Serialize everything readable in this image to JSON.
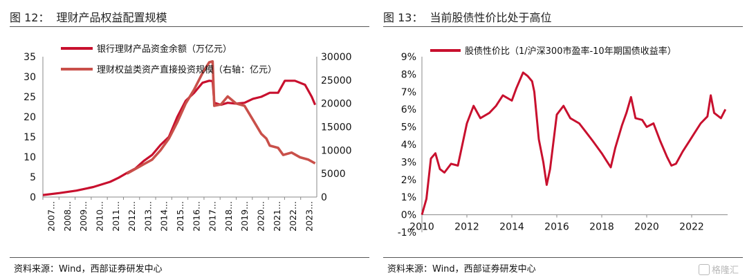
{
  "left": {
    "title_num": "图 12：",
    "title_text": "理财产品权益配置规模",
    "source": "资料来源：Wind，西部证券研发中心"
  },
  "right": {
    "title_num": "图 13：",
    "title_text": "当前股债性价比处于高位",
    "source": "资料来源：Wind，西部证券研发中心"
  },
  "watermark": "格隆汇",
  "chart_data": [
    {
      "type": "line",
      "title": "",
      "x": [
        "2007...",
        "2008...",
        "2009...",
        "2010...",
        "2011...",
        "2012...",
        "2013...",
        "2014...",
        "2015...",
        "2016...",
        "2017...",
        "2018...",
        "2019...",
        "2020...",
        "2021...",
        "2022...",
        "2023..."
      ],
      "ylim": [
        0,
        35
      ],
      "yticks": [
        0,
        5,
        10,
        15,
        20,
        25,
        30,
        35
      ],
      "y2lim": [
        0,
        30000
      ],
      "y2ticks": [
        0,
        5000,
        10000,
        15000,
        20000,
        25000,
        30000
      ],
      "colors": {
        "series1": "#c8102e",
        "series2": "#c9504a"
      },
      "series": [
        {
          "name": "银行理财产品资金余额（万亿元）",
          "axis": "left",
          "values": [
            [
              2007.0,
              0.5
            ],
            [
              2008.0,
              1.0
            ],
            [
              2009.0,
              1.6
            ],
            [
              2010.0,
              2.5
            ],
            [
              2011.0,
              3.8
            ],
            [
              2011.5,
              4.8
            ],
            [
              2012.0,
              6.0
            ],
            [
              2012.5,
              7.1
            ],
            [
              2013.0,
              9.0
            ],
            [
              2013.5,
              10.5
            ],
            [
              2014.0,
              13.0
            ],
            [
              2014.5,
              15.0
            ],
            [
              2015.0,
              20.0
            ],
            [
              2015.5,
              24.0
            ],
            [
              2016.0,
              26.0
            ],
            [
              2016.5,
              28.5
            ],
            [
              2016.9,
              29.0
            ],
            [
              2017.1,
              28.9
            ],
            [
              2017.2,
              23.5
            ],
            [
              2017.6,
              23.0
            ],
            [
              2018.0,
              23.5
            ],
            [
              2018.5,
              23.3
            ],
            [
              2019.0,
              23.5
            ],
            [
              2019.5,
              24.5
            ],
            [
              2020.0,
              25.0
            ],
            [
              2020.5,
              26.0
            ],
            [
              2021.0,
              26.0
            ],
            [
              2021.4,
              29.0
            ],
            [
              2022.0,
              29.0
            ],
            [
              2022.6,
              28.0
            ],
            [
              2023.0,
              25.0
            ],
            [
              2023.2,
              23.0
            ]
          ]
        },
        {
          "name": "理财权益类资产直接投资规模（右轴：亿元）",
          "axis": "right",
          "values": [
            [
              2012.0,
              5000
            ],
            [
              2012.5,
              6000
            ],
            [
              2013.0,
              7000
            ],
            [
              2013.5,
              8000
            ],
            [
              2014.0,
              10000
            ],
            [
              2014.5,
              12500
            ],
            [
              2015.0,
              16000
            ],
            [
              2015.5,
              20000
            ],
            [
              2016.0,
              23000
            ],
            [
              2016.5,
              26500
            ],
            [
              2016.9,
              28800
            ],
            [
              2017.1,
              29000
            ],
            [
              2017.2,
              19500
            ],
            [
              2017.6,
              19800
            ],
            [
              2018.0,
              21500
            ],
            [
              2018.5,
              20000
            ],
            [
              2019.0,
              19500
            ],
            [
              2019.5,
              16500
            ],
            [
              2020.0,
              13500
            ],
            [
              2020.3,
              12500
            ],
            [
              2020.5,
              11000
            ],
            [
              2021.0,
              10500
            ],
            [
              2021.3,
              9000
            ],
            [
              2021.8,
              9500
            ],
            [
              2022.3,
              8500
            ],
            [
              2022.8,
              8000
            ],
            [
              2023.2,
              7200
            ]
          ]
        }
      ]
    },
    {
      "type": "line",
      "title": "",
      "xticks": [
        2010,
        2012,
        2014,
        2016,
        2018,
        2020,
        2022
      ],
      "xlim": [
        2010,
        2023.6
      ],
      "ylim": [
        -0.01,
        0.09
      ],
      "yticks": [
        "-1%",
        "0%",
        "1%",
        "2%",
        "3%",
        "4%",
        "5%",
        "6%",
        "7%",
        "8%",
        "9%"
      ],
      "colors": {
        "series1": "#c8102e"
      },
      "series": [
        {
          "name": "股债性价比（1/沪深300市盈率-10年期国债收益率）",
          "values": [
            [
              2010.0,
              0.0
            ],
            [
              2010.2,
              0.009
            ],
            [
              2010.4,
              0.032
            ],
            [
              2010.6,
              0.035
            ],
            [
              2010.8,
              0.026
            ],
            [
              2011.0,
              0.024
            ],
            [
              2011.3,
              0.029
            ],
            [
              2011.6,
              0.028
            ],
            [
              2012.0,
              0.052
            ],
            [
              2012.3,
              0.062
            ],
            [
              2012.6,
              0.055
            ],
            [
              2013.0,
              0.058
            ],
            [
              2013.3,
              0.062
            ],
            [
              2013.6,
              0.068
            ],
            [
              2014.0,
              0.065
            ],
            [
              2014.2,
              0.072
            ],
            [
              2014.5,
              0.081
            ],
            [
              2014.7,
              0.079
            ],
            [
              2014.9,
              0.076
            ],
            [
              2015.0,
              0.07
            ],
            [
              2015.2,
              0.043
            ],
            [
              2015.4,
              0.03
            ],
            [
              2015.55,
              0.017
            ],
            [
              2015.7,
              0.026
            ],
            [
              2016.0,
              0.057
            ],
            [
              2016.3,
              0.062
            ],
            [
              2016.6,
              0.055
            ],
            [
              2017.0,
              0.052
            ],
            [
              2017.3,
              0.047
            ],
            [
              2017.6,
              0.042
            ],
            [
              2018.0,
              0.035
            ],
            [
              2018.2,
              0.031
            ],
            [
              2018.4,
              0.027
            ],
            [
              2018.6,
              0.038
            ],
            [
              2018.9,
              0.051
            ],
            [
              2019.1,
              0.058
            ],
            [
              2019.3,
              0.067
            ],
            [
              2019.5,
              0.055
            ],
            [
              2019.8,
              0.054
            ],
            [
              2020.0,
              0.05
            ],
            [
              2020.3,
              0.052
            ],
            [
              2020.6,
              0.042
            ],
            [
              2020.9,
              0.033
            ],
            [
              2021.1,
              0.028
            ],
            [
              2021.3,
              0.029
            ],
            [
              2021.6,
              0.036
            ],
            [
              2021.9,
              0.042
            ],
            [
              2022.1,
              0.046
            ],
            [
              2022.4,
              0.052
            ],
            [
              2022.7,
              0.056
            ],
            [
              2022.85,
              0.068
            ],
            [
              2023.0,
              0.058
            ],
            [
              2023.3,
              0.055
            ],
            [
              2023.5,
              0.06
            ]
          ]
        }
      ]
    }
  ]
}
